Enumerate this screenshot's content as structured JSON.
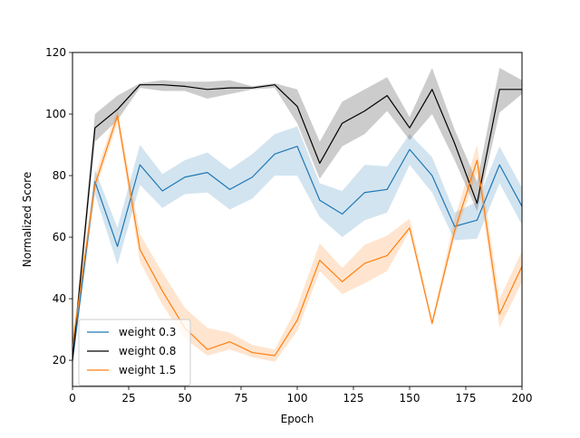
{
  "chart_data": {
    "type": "line",
    "xlabel": "Epoch",
    "ylabel": "Normalized Score",
    "xlim": [
      0,
      200
    ],
    "ylim": [
      11.5,
      120
    ],
    "xticks": [
      0,
      25,
      50,
      75,
      100,
      125,
      150,
      175,
      200
    ],
    "yticks": [
      20,
      40,
      60,
      80,
      100,
      120
    ],
    "grid": false,
    "legend_position": "bottom-left",
    "x": [
      0,
      10,
      20,
      30,
      40,
      50,
      60,
      70,
      80,
      90,
      100,
      110,
      120,
      130,
      140,
      150,
      160,
      170,
      180,
      190,
      200
    ],
    "series": [
      {
        "name": "weight 0.3",
        "color": "#1f77b4",
        "values": [
          20,
          78,
          57,
          83.5,
          75,
          79.5,
          81,
          75.5,
          79.5,
          87,
          89.5,
          72,
          67.5,
          74.5,
          75.5,
          88.5,
          80,
          63.5,
          65.5,
          83.5,
          70
        ],
        "lower": [
          18,
          74,
          51,
          77,
          69.5,
          74,
          74.5,
          69,
          72.5,
          80,
          80,
          66.5,
          60,
          65.5,
          68,
          83.5,
          74.5,
          59,
          59.5,
          77.5,
          64
        ],
        "upper": [
          22,
          82,
          63,
          90,
          80.5,
          85,
          87.5,
          82,
          87,
          93.5,
          96,
          77.5,
          75,
          83.5,
          83,
          93.5,
          86,
          68,
          71.5,
          89.5,
          76
        ]
      },
      {
        "name": "weight 0.8",
        "color": "#000000",
        "values": [
          20,
          95.5,
          101.5,
          109.5,
          109.5,
          109,
          108,
          108.5,
          108.5,
          109.5,
          102.5,
          84,
          97,
          101,
          106,
          95.5,
          108,
          90.5,
          71,
          108,
          108
        ],
        "lower": [
          18,
          91,
          98,
          108.5,
          107.5,
          107.5,
          105,
          106.5,
          108,
          108.5,
          97,
          79,
          89.5,
          93.5,
          101,
          91.5,
          100,
          85,
          68.5,
          100.5,
          106.5
        ],
        "upper": [
          22,
          100,
          106,
          110,
          111,
          110.5,
          110.5,
          111,
          109,
          110,
          108,
          91,
          104,
          108,
          112,
          99,
          115,
          95,
          78,
          115,
          111
        ]
      },
      {
        "name": "weight 1.5",
        "color": "#ff7f0e",
        "values": [
          25,
          77,
          99.5,
          56,
          42.5,
          30.5,
          23.5,
          26,
          22.5,
          21.5,
          33,
          52.5,
          45.5,
          51.5,
          54,
          63,
          32,
          62,
          85,
          35,
          50.5
        ],
        "lower": [
          22,
          75,
          97,
          52,
          38,
          27,
          21.5,
          23.5,
          21,
          19.5,
          29.5,
          49,
          41.5,
          45,
          49,
          62,
          31,
          60,
          81,
          30.5,
          45.5
        ],
        "upper": [
          28,
          80,
          101.5,
          61,
          48.5,
          37,
          30.5,
          29,
          25,
          23.5,
          37.5,
          58,
          50,
          57.5,
          60.5,
          66,
          33.5,
          66,
          90,
          40,
          55.5
        ]
      }
    ]
  }
}
